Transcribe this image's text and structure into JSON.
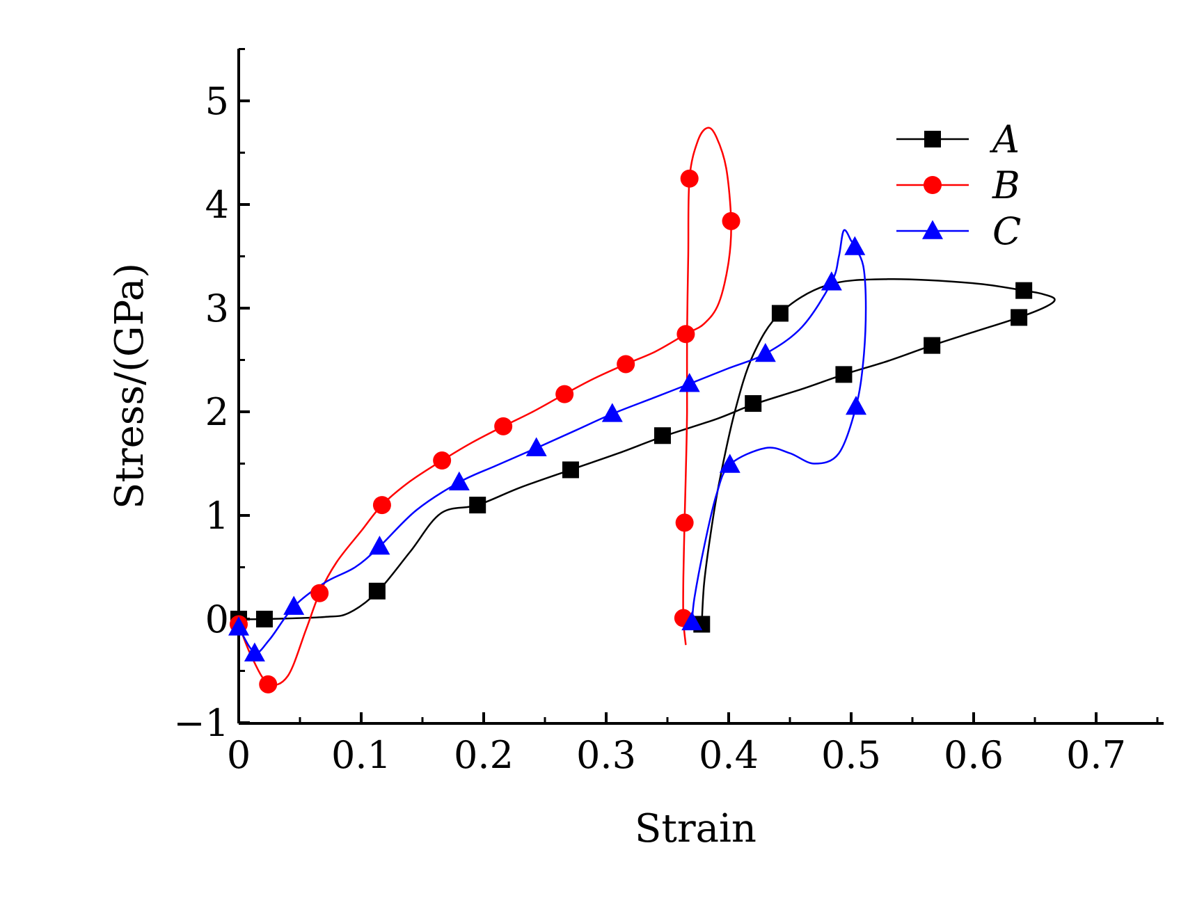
{
  "chart_data": {
    "type": "line",
    "title": "",
    "xlabel": "Strain",
    "ylabel": "Stress/(GPa)",
    "xlim": [
      0,
      0.75
    ],
    "ylim": [
      -1,
      5.5
    ],
    "x_ticks": [
      0,
      0.1,
      0.2,
      0.3,
      0.4,
      0.5,
      0.6,
      0.7
    ],
    "x_tick_labels": [
      "0",
      "0.1",
      "0.2",
      "0.3",
      "0.4",
      "0.5",
      "0.6",
      "0.7"
    ],
    "y_ticks": [
      -1,
      0,
      1,
      2,
      3,
      4,
      5
    ],
    "y_tick_labels": [
      "−1",
      "0",
      "1",
      "2",
      "3",
      "4",
      "5"
    ],
    "grid": false,
    "legend_position": "top-right",
    "series": [
      {
        "name": "A",
        "color": "#000000",
        "marker": "square",
        "points": [
          [
            0,
            0
          ],
          [
            0.021,
            0
          ],
          [
            0.07,
            0.02
          ],
          [
            0.09,
            0.06
          ],
          [
            0.113,
            0.26
          ],
          [
            0.14,
            0.65
          ],
          [
            0.165,
            1.02
          ],
          [
            0.195,
            1.1
          ],
          [
            0.23,
            1.27
          ],
          [
            0.271,
            1.44
          ],
          [
            0.31,
            1.6
          ],
          [
            0.346,
            1.76
          ],
          [
            0.39,
            1.93
          ],
          [
            0.42,
            2.07
          ],
          [
            0.46,
            2.22
          ],
          [
            0.494,
            2.36
          ],
          [
            0.53,
            2.49
          ],
          [
            0.566,
            2.64
          ],
          [
            0.6,
            2.77
          ],
          [
            0.637,
            2.91
          ],
          [
            0.66,
            3.02
          ],
          [
            0.666,
            3.09
          ],
          [
            0.655,
            3.14
          ],
          [
            0.641,
            3.17
          ],
          [
            0.6,
            3.24
          ],
          [
            0.53,
            3.28
          ],
          [
            0.48,
            3.22
          ],
          [
            0.442,
            2.95
          ],
          [
            0.42,
            2.55
          ],
          [
            0.405,
            2.0
          ],
          [
            0.392,
            1.3
          ],
          [
            0.385,
            0.8
          ],
          [
            0.38,
            0.35
          ],
          [
            0.378,
            -0.05
          ]
        ],
        "markers": [
          [
            0,
            0
          ],
          [
            0.021,
            0
          ],
          [
            0.113,
            0.27
          ],
          [
            0.195,
            1.1
          ],
          [
            0.271,
            1.44
          ],
          [
            0.346,
            1.77
          ],
          [
            0.42,
            2.08
          ],
          [
            0.494,
            2.36
          ],
          [
            0.566,
            2.64
          ],
          [
            0.637,
            2.91
          ],
          [
            0.641,
            3.17
          ],
          [
            0.442,
            2.95
          ],
          [
            0.378,
            -0.05
          ]
        ]
      },
      {
        "name": "B",
        "color": "#ff0000",
        "marker": "circle",
        "points": [
          [
            0,
            -0.05
          ],
          [
            0.01,
            -0.35
          ],
          [
            0.024,
            -0.62
          ],
          [
            0.04,
            -0.55
          ],
          [
            0.055,
            -0.1
          ],
          [
            0.066,
            0.25
          ],
          [
            0.08,
            0.55
          ],
          [
            0.1,
            0.85
          ],
          [
            0.117,
            1.1
          ],
          [
            0.14,
            1.33
          ],
          [
            0.166,
            1.53
          ],
          [
            0.19,
            1.7
          ],
          [
            0.216,
            1.86
          ],
          [
            0.24,
            2.0
          ],
          [
            0.266,
            2.17
          ],
          [
            0.29,
            2.32
          ],
          [
            0.316,
            2.46
          ],
          [
            0.34,
            2.58
          ],
          [
            0.365,
            2.75
          ],
          [
            0.38,
            2.85
          ],
          [
            0.392,
            3.05
          ],
          [
            0.4,
            3.45
          ],
          [
            0.402,
            3.84
          ],
          [
            0.398,
            4.35
          ],
          [
            0.39,
            4.65
          ],
          [
            0.383,
            4.74
          ],
          [
            0.375,
            4.62
          ],
          [
            0.368,
            4.25
          ],
          [
            0.367,
            3.5
          ],
          [
            0.366,
            2.75
          ],
          [
            0.366,
            2.0
          ],
          [
            0.365,
            1.4
          ],
          [
            0.364,
            0.93
          ],
          [
            0.363,
            0.4
          ],
          [
            0.363,
            0.0
          ],
          [
            0.365,
            -0.25
          ]
        ],
        "markers": [
          [
            0,
            -0.05
          ],
          [
            0.024,
            -0.63
          ],
          [
            0.066,
            0.25
          ],
          [
            0.117,
            1.1
          ],
          [
            0.166,
            1.53
          ],
          [
            0.216,
            1.86
          ],
          [
            0.266,
            2.17
          ],
          [
            0.316,
            2.46
          ],
          [
            0.365,
            2.75
          ],
          [
            0.402,
            3.84
          ],
          [
            0.368,
            4.25
          ],
          [
            0.364,
            0.93
          ],
          [
            0.363,
            0.01
          ]
        ]
      },
      {
        "name": "C",
        "color": "#0000ff",
        "marker": "triangle",
        "points": [
          [
            0,
            -0.08
          ],
          [
            0.013,
            -0.32
          ],
          [
            0.025,
            -0.2
          ],
          [
            0.045,
            0.12
          ],
          [
            0.07,
            0.35
          ],
          [
            0.095,
            0.5
          ],
          [
            0.115,
            0.7
          ],
          [
            0.145,
            1.05
          ],
          [
            0.18,
            1.32
          ],
          [
            0.21,
            1.48
          ],
          [
            0.243,
            1.65
          ],
          [
            0.275,
            1.82
          ],
          [
            0.305,
            1.98
          ],
          [
            0.34,
            2.14
          ],
          [
            0.368,
            2.27
          ],
          [
            0.4,
            2.42
          ],
          [
            0.43,
            2.56
          ],
          [
            0.46,
            2.82
          ],
          [
            0.484,
            3.25
          ],
          [
            0.49,
            3.5
          ],
          [
            0.494,
            3.75
          ],
          [
            0.5,
            3.65
          ],
          [
            0.503,
            3.59
          ],
          [
            0.51,
            3.4
          ],
          [
            0.512,
            3.0
          ],
          [
            0.51,
            2.5
          ],
          [
            0.504,
            2.05
          ],
          [
            0.49,
            1.6
          ],
          [
            0.47,
            1.5
          ],
          [
            0.45,
            1.6
          ],
          [
            0.43,
            1.65
          ],
          [
            0.401,
            1.49
          ],
          [
            0.39,
            1.2
          ],
          [
            0.38,
            0.7
          ],
          [
            0.372,
            0.2
          ],
          [
            0.37,
            -0.05
          ]
        ],
        "markers": [
          [
            0,
            -0.08
          ],
          [
            0.013,
            -0.33
          ],
          [
            0.045,
            0.12
          ],
          [
            0.115,
            0.7
          ],
          [
            0.18,
            1.32
          ],
          [
            0.243,
            1.65
          ],
          [
            0.305,
            1.98
          ],
          [
            0.368,
            2.27
          ],
          [
            0.43,
            2.56
          ],
          [
            0.484,
            3.25
          ],
          [
            0.503,
            3.59
          ],
          [
            0.504,
            2.05
          ],
          [
            0.401,
            1.49
          ],
          [
            0.37,
            -0.03
          ]
        ]
      }
    ]
  }
}
